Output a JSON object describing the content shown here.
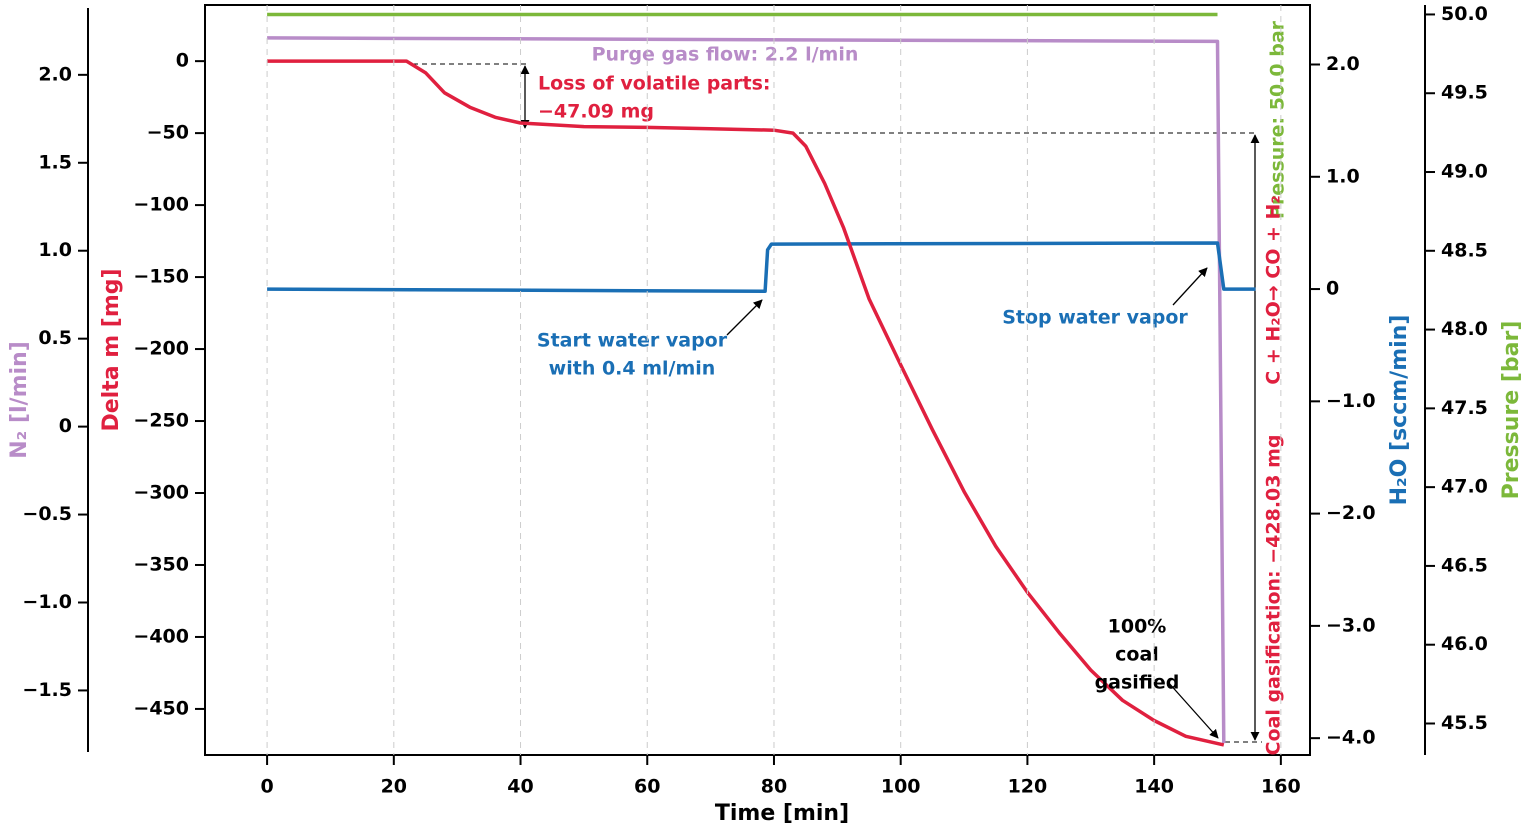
{
  "chart_data": {
    "type": "line",
    "xlabel": "Time [min]",
    "xlim": [
      -9.8,
      164.6
    ],
    "xticks": [
      0,
      20,
      40,
      60,
      80,
      100,
      120,
      140,
      160
    ],
    "grid": true,
    "ylabel": "Delta m [mg]",
    "ycolor": "#e0203f",
    "ylim": [
      -482,
      39
    ],
    "yticks": [
      0,
      {
        "value": -50,
        "label": "−50"
      },
      {
        "value": -100,
        "label": "−100"
      },
      {
        "value": -150,
        "label": "−150"
      },
      {
        "value": -200,
        "label": "−200"
      },
      {
        "value": -250,
        "label": "−250"
      },
      {
        "value": -300,
        "label": "−300"
      },
      {
        "value": -350,
        "label": "−350"
      },
      {
        "value": -400,
        "label": "−400"
      },
      {
        "value": -450,
        "label": "−450"
      }
    ],
    "y2label": "N₂ [l/min]",
    "y2color": "#b88cc8",
    "y2lim": [
      -1.85,
      2.38
    ],
    "y2ticks": [
      {
        "value": 2,
        "label": "2.0"
      },
      1.5,
      {
        "value": 1,
        "label": "1.0"
      },
      0.5,
      0,
      {
        "value": -0.5,
        "label": "−0.5"
      },
      {
        "value": -1,
        "label": "−1.0"
      },
      {
        "value": -1.5,
        "label": "−1.5"
      }
    ],
    "y3label": "H₂O [sccm/min]",
    "y3color": "#1a6fb5",
    "y3lim": [
      -4.15,
      2.53
    ],
    "y3ticks": [
      {
        "value": 2,
        "label": "2.0"
      },
      {
        "value": 1,
        "label": "1.0"
      },
      0,
      {
        "value": -1,
        "label": "−1.0"
      },
      {
        "value": -2,
        "label": "−2.0"
      },
      {
        "value": -3,
        "label": "−3.0"
      },
      {
        "value": -4,
        "label": "−4.0"
      }
    ],
    "y4label": "Pressure [bar]",
    "y4color": "#7cb83a",
    "y4lim": [
      45.3,
      50.06
    ],
    "y4ticks": [
      {
        "value": 50,
        "label": "50.0"
      },
      49.5,
      {
        "value": 49,
        "label": "49.0"
      },
      48.5,
      {
        "value": 48,
        "label": "48.0"
      },
      47.5,
      {
        "value": 47,
        "label": "47.0"
      },
      46.5,
      {
        "value": 46,
        "label": "46.0"
      },
      45.5
    ],
    "series": [
      {
        "axis": "y4",
        "color": "#7cb83a",
        "x": [
          0,
          150
        ],
        "values": [
          50,
          50
        ]
      },
      {
        "axis": "y2",
        "color": "#b88cc8",
        "x": [
          0,
          150,
          151
        ],
        "values": [
          2.21,
          2.19,
          -1.8
        ]
      },
      {
        "axis": "y3",
        "color": "#1a6fb5",
        "x": [
          0,
          78.6,
          79,
          79.6,
          150,
          151,
          156
        ],
        "values": [
          0,
          -0.02,
          0.35,
          0.4,
          0.41,
          0,
          0
        ]
      },
      {
        "axis": "y",
        "color": "#e0203f",
        "x": [
          0,
          22,
          25,
          28,
          32,
          36,
          40,
          50,
          60,
          70,
          80,
          83,
          85,
          88,
          91,
          95,
          100,
          105,
          110,
          115,
          120,
          125,
          130,
          135,
          140,
          145,
          151
        ],
        "values": [
          0,
          0,
          -8,
          -22,
          -32,
          -39,
          -43,
          -45.5,
          -46,
          -47,
          -48,
          -50,
          -59,
          -85,
          -116,
          -165,
          -211,
          -256,
          -299,
          -337,
          -369,
          -397,
          -423,
          -444,
          -458,
          -469,
          -475
        ]
      }
    ],
    "annotations": [
      "Purge gas flow: 2.2 l/min",
      "Pressure: 50.0 bar",
      "Loss of volatile parts:",
      "−47.09 mg",
      "Start water vapor",
      "with 0.4 ml/min",
      "Stop water vapor",
      "100%",
      "coal",
      "gasified",
      "Coal gasification: −428.03 mg",
      "C + H₂O→ CO + H₂"
    ]
  }
}
